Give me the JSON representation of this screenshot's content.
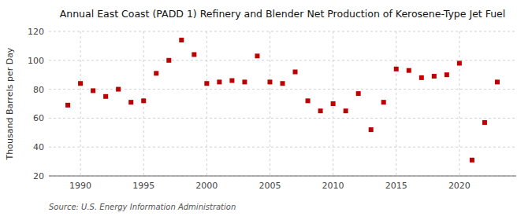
{
  "chart_data": {
    "type": "scatter",
    "title": "Annual East Coast (PADD 1) Refinery and Blender Net Production of Kerosene-Type Jet Fuel",
    "ylabel": "Thousand Barrels per Day",
    "annotation": "Source: U.S. Energy Information Administration",
    "x": [
      1989,
      1990,
      1991,
      1992,
      1993,
      1994,
      1995,
      1996,
      1997,
      1998,
      1999,
      2000,
      2001,
      2002,
      2003,
      2004,
      2005,
      2006,
      2007,
      2008,
      2009,
      2010,
      2011,
      2012,
      2013,
      2014,
      2015,
      2016,
      2017,
      2018,
      2019,
      2020,
      2021,
      2022,
      2023
    ],
    "values": [
      69,
      84,
      79,
      75,
      80,
      71,
      72,
      91,
      100,
      114,
      104,
      84,
      85,
      86,
      85,
      103,
      85,
      84,
      92,
      72,
      65,
      70,
      65,
      77,
      52,
      71,
      94,
      93,
      88,
      89,
      90,
      98,
      31,
      57,
      85
    ],
    "color": "#c00000",
    "marker": "square",
    "xlim": [
      1987.5,
      2024.5
    ],
    "xticks": [
      1990,
      1995,
      2000,
      2005,
      2010,
      2015,
      2020
    ],
    "ylim": [
      20,
      120
    ],
    "yticks": [
      20,
      40,
      60,
      80,
      100,
      120
    ],
    "grid": true
  }
}
